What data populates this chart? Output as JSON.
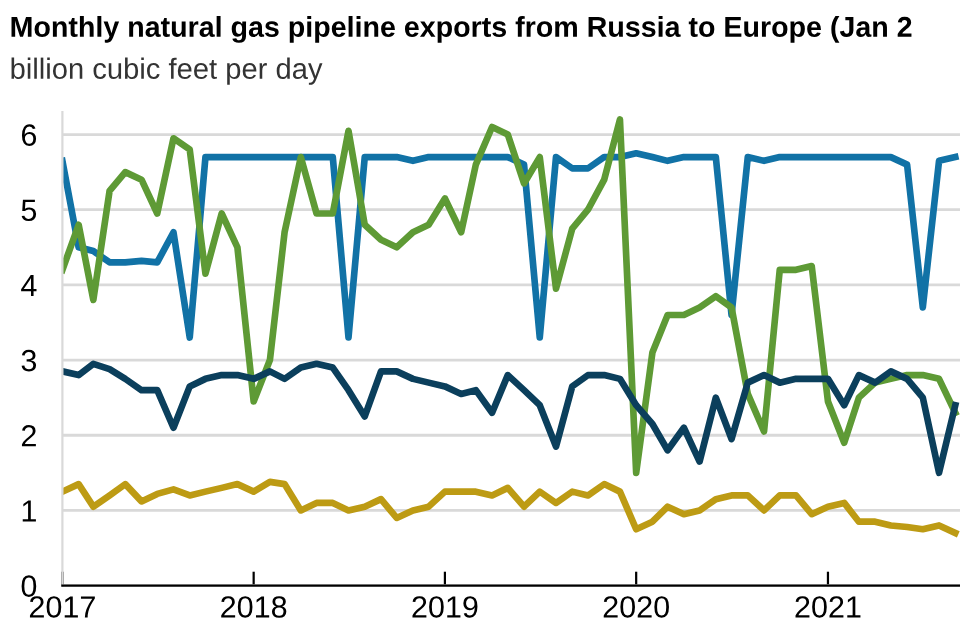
{
  "chart_data": {
    "type": "line",
    "title": "Monthly natural gas pipeline exports from Russia to Europe (Jan 2",
    "subtitle": "billion cubic feet per day",
    "x": [
      "2017-01",
      "2017-02",
      "2017-03",
      "2017-04",
      "2017-05",
      "2017-06",
      "2017-07",
      "2017-08",
      "2017-09",
      "2017-10",
      "2017-11",
      "2017-12",
      "2018-01",
      "2018-02",
      "2018-03",
      "2018-04",
      "2018-05",
      "2018-06",
      "2018-07",
      "2018-08",
      "2018-09",
      "2018-10",
      "2018-11",
      "2018-12",
      "2019-01",
      "2019-02",
      "2019-03",
      "2019-04",
      "2019-05",
      "2019-06",
      "2019-07",
      "2019-08",
      "2019-09",
      "2019-10",
      "2019-11",
      "2019-12",
      "2020-01",
      "2020-02",
      "2020-03",
      "2020-04",
      "2020-05",
      "2020-06",
      "2020-07",
      "2020-08",
      "2020-09",
      "2020-10",
      "2020-11",
      "2020-12",
      "2021-01",
      "2021-02",
      "2021-03",
      "2021-04",
      "2021-05",
      "2021-06",
      "2021-07",
      "2021-08",
      "2021-09"
    ],
    "series": [
      {
        "color": "#1172a6",
        "values": [
          5.65,
          4.5,
          4.45,
          4.3,
          4.3,
          4.32,
          4.3,
          4.7,
          3.3,
          5.7,
          5.7,
          5.7,
          5.7,
          5.7,
          5.7,
          5.7,
          5.7,
          5.7,
          3.3,
          5.7,
          5.7,
          5.7,
          5.65,
          5.7,
          5.7,
          5.7,
          5.7,
          5.7,
          5.7,
          5.6,
          3.3,
          5.7,
          5.55,
          5.55,
          5.7,
          5.7,
          5.75,
          5.7,
          5.65,
          5.7,
          5.7,
          5.7,
          3.6,
          5.7,
          5.65,
          5.7,
          5.7,
          5.7,
          5.7,
          5.7,
          5.7,
          5.7,
          5.7,
          5.6,
          3.7,
          5.65,
          5.7
        ]
      },
      {
        "color": "#5e9a35",
        "values": [
          4.2,
          4.8,
          3.8,
          5.25,
          5.5,
          5.4,
          4.95,
          5.95,
          5.8,
          4.15,
          4.95,
          4.5,
          2.45,
          3.0,
          4.7,
          5.7,
          4.95,
          4.95,
          6.05,
          4.8,
          4.6,
          4.5,
          4.7,
          4.8,
          5.15,
          4.7,
          5.6,
          6.1,
          6.0,
          5.35,
          5.7,
          3.95,
          4.75,
          5.0,
          5.4,
          6.2,
          1.5,
          3.1,
          3.6,
          3.6,
          3.7,
          3.85,
          3.7,
          2.55,
          2.05,
          4.2,
          4.2,
          4.25,
          2.45,
          1.9,
          2.5,
          2.7,
          2.75,
          2.8,
          2.8,
          2.75,
          2.3
        ]
      },
      {
        "color": "#0b3f5c",
        "values": [
          2.85,
          2.8,
          2.95,
          2.88,
          2.75,
          2.6,
          2.6,
          2.1,
          2.65,
          2.75,
          2.8,
          2.8,
          2.75,
          2.85,
          2.75,
          2.9,
          2.95,
          2.9,
          2.6,
          2.25,
          2.85,
          2.85,
          2.75,
          2.7,
          2.65,
          2.55,
          2.6,
          2.3,
          2.8,
          2.6,
          2.4,
          1.85,
          2.65,
          2.8,
          2.8,
          2.75,
          2.4,
          2.15,
          1.8,
          2.1,
          1.65,
          2.5,
          1.95,
          2.7,
          2.8,
          2.7,
          2.75,
          2.75,
          2.75,
          2.4,
          2.8,
          2.7,
          2.85,
          2.75,
          2.5,
          1.5,
          2.4
        ]
      },
      {
        "color": "#bd9b14",
        "values": [
          1.25,
          1.35,
          1.05,
          1.2,
          1.35,
          1.12,
          1.22,
          1.28,
          1.2,
          1.25,
          1.3,
          1.35,
          1.25,
          1.38,
          1.35,
          1.0,
          1.1,
          1.1,
          1.0,
          1.05,
          1.15,
          0.9,
          1.0,
          1.05,
          1.25,
          1.25,
          1.25,
          1.2,
          1.3,
          1.05,
          1.25,
          1.1,
          1.25,
          1.2,
          1.35,
          1.25,
          0.75,
          0.85,
          1.05,
          0.95,
          1.0,
          1.15,
          1.2,
          1.2,
          1.0,
          1.2,
          1.2,
          0.95,
          1.05,
          1.1,
          0.85,
          0.85,
          0.8,
          0.78,
          0.75,
          0.8,
          0.7
        ]
      }
    ],
    "xlim": [
      "2017-01",
      "2021-09-10"
    ],
    "xticks": [
      "2017",
      "2018",
      "2019",
      "2020",
      "2021"
    ],
    "ylim": [
      0,
      6.3
    ],
    "yticks": [
      0,
      1,
      2,
      3,
      4,
      5,
      6
    ],
    "grid": "y",
    "legend": false
  }
}
